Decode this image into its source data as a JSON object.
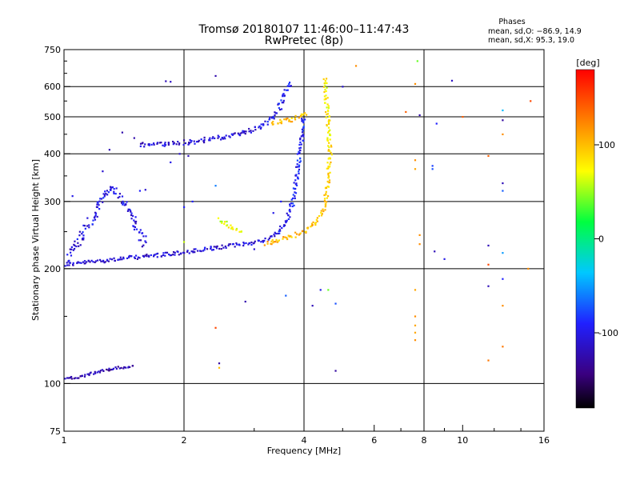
{
  "chart_data": {
    "type": "scatter",
    "title": "Tromsø 20180107 11:46:00–11:47:43",
    "subtitle": "RwPretec (8p)",
    "xlabel": "Frequency [MHz]",
    "ylabel": "Stationary phase Virtual Height [km]",
    "x_scale": "log",
    "y_scale": "log",
    "xlim": [
      1,
      16
    ],
    "ylim": [
      75,
      750
    ],
    "x_ticks": [
      1,
      2,
      4,
      6,
      8,
      10,
      16
    ],
    "y_ticks": [
      75,
      100,
      200,
      300,
      400,
      500,
      600,
      750
    ],
    "grid": true,
    "phase_info": {
      "heading": "Phases",
      "line_o": "mean, sd,O: −86.9, 14.9",
      "line_x": "mean, sd,X:  95.3, 19.0"
    },
    "colorbar": {
      "label": "[deg]",
      "range": [
        -180,
        180
      ],
      "ticks": [
        100,
        0,
        -100
      ],
      "colors": [
        "#000000",
        "#3a0080",
        "#2020ff",
        "#00c8ff",
        "#00ff40",
        "#ffff00",
        "#ff8000",
        "#ff0000"
      ]
    },
    "series": [
      {
        "trace": [
          [
            1.0,
            205,
            -110
          ],
          [
            1.15,
            208,
            -110
          ],
          [
            1.3,
            211,
            -112
          ],
          [
            1.5,
            214,
            -112
          ],
          [
            1.8,
            218,
            -110
          ],
          [
            2.1,
            222,
            -110
          ],
          [
            2.5,
            228,
            -108
          ],
          [
            2.8,
            232,
            -108
          ],
          [
            3.1,
            236,
            -105
          ],
          [
            3.4,
            245,
            -100
          ],
          [
            3.6,
            265,
            -100
          ],
          [
            3.75,
            300,
            -95
          ],
          [
            3.85,
            360,
            -95
          ],
          [
            3.95,
            440,
            -90
          ],
          [
            4.0,
            500,
            -90
          ]
        ],
        "spread": 5
      },
      {
        "trace": [
          [
            1.55,
            422,
            -112
          ],
          [
            1.8,
            425,
            -110
          ],
          [
            2.1,
            430,
            -110
          ],
          [
            2.5,
            442,
            -108
          ],
          [
            2.9,
            458,
            -105
          ],
          [
            3.2,
            480,
            -102
          ],
          [
            3.45,
            520,
            -100
          ],
          [
            3.6,
            580,
            -95
          ],
          [
            3.7,
            620,
            -95
          ]
        ],
        "spread": 6
      },
      {
        "trace": [
          [
            3.2,
            232,
            110
          ],
          [
            3.6,
            240,
            105
          ],
          [
            4.0,
            250,
            100
          ],
          [
            4.3,
            265,
            100
          ],
          [
            4.5,
            290,
            95
          ],
          [
            4.6,
            340,
            90
          ],
          [
            4.65,
            400,
            85
          ],
          [
            4.6,
            470,
            80
          ],
          [
            4.55,
            560,
            80
          ],
          [
            4.5,
            640,
            78
          ]
        ],
        "spread": 5
      },
      {
        "trace": [
          [
            3.3,
            480,
            110
          ],
          [
            3.7,
            490,
            100
          ],
          [
            4.1,
            510,
            100
          ]
        ],
        "spread": 6
      },
      {
        "trace": [
          [
            2.45,
            270,
            60
          ],
          [
            2.6,
            258,
            70
          ],
          [
            2.8,
            248,
            65
          ]
        ],
        "spread": 5
      },
      {
        "trace": [
          [
            1.0,
            210,
            -110
          ],
          [
            1.1,
            240,
            -105
          ],
          [
            1.2,
            280,
            -100
          ],
          [
            1.3,
            330,
            -100
          ],
          [
            1.45,
            290,
            -105
          ],
          [
            1.6,
            230,
            -110
          ]
        ],
        "spread": 9
      },
      {
        "trace": [
          [
            1.0,
            103,
            -120
          ],
          [
            1.1,
            104,
            -120
          ],
          [
            1.2,
            107,
            -125
          ],
          [
            1.35,
            110,
            -125
          ],
          [
            1.5,
            111,
            -125
          ]
        ],
        "spread": 3
      }
    ],
    "scatter_points": [
      [
        1.8,
        620,
        -120
      ],
      [
        1.85,
        618,
        -115
      ],
      [
        2.4,
        640,
        -125
      ],
      [
        5.0,
        600,
        -110
      ],
      [
        5.4,
        680,
        120
      ],
      [
        7.6,
        610,
        120
      ],
      [
        7.7,
        700,
        40
      ],
      [
        7.2,
        515,
        140
      ],
      [
        7.8,
        505,
        -125
      ],
      [
        8.6,
        480,
        -90
      ],
      [
        9.4,
        622,
        -115
      ],
      [
        10.0,
        500,
        140
      ],
      [
        12.6,
        520,
        -40
      ],
      [
        12.6,
        490,
        -130
      ],
      [
        12.6,
        450,
        120
      ],
      [
        14.8,
        550,
        150
      ],
      [
        11.6,
        395,
        140
      ],
      [
        12.6,
        335,
        -120
      ],
      [
        12.6,
        320,
        -70
      ],
      [
        7.6,
        385,
        120
      ],
      [
        7.6,
        365,
        110
      ],
      [
        8.4,
        372,
        -80
      ],
      [
        8.4,
        365,
        -75
      ],
      [
        7.8,
        245,
        120
      ],
      [
        7.8,
        232,
        120
      ],
      [
        11.6,
        230,
        -120
      ],
      [
        11.6,
        205,
        150
      ],
      [
        12.6,
        220,
        -50
      ],
      [
        14.6,
        200,
        120
      ],
      [
        8.5,
        222,
        -120
      ],
      [
        9.0,
        212,
        -100
      ],
      [
        11.6,
        180,
        -120
      ],
      [
        12.6,
        188,
        -90
      ],
      [
        12.6,
        160,
        120
      ],
      [
        7.6,
        176,
        110
      ],
      [
        7.6,
        150,
        120
      ],
      [
        7.6,
        142,
        110
      ],
      [
        7.6,
        136,
        110
      ],
      [
        7.6,
        130,
        120
      ],
      [
        11.6,
        115,
        130
      ],
      [
        12.6,
        125,
        130
      ],
      [
        4.4,
        176,
        -100
      ],
      [
        4.6,
        176,
        40
      ],
      [
        3.6,
        170,
        -70
      ],
      [
        4.2,
        160,
        -120
      ],
      [
        4.8,
        162,
        -75
      ],
      [
        2.85,
        164,
        -125
      ],
      [
        2.4,
        140,
        150
      ],
      [
        2.45,
        110,
        100
      ],
      [
        2.45,
        113,
        -130
      ],
      [
        4.8,
        108,
        -130
      ],
      [
        2.4,
        330,
        -60
      ],
      [
        2.0,
        235,
        60
      ],
      [
        2.1,
        300,
        -90
      ],
      [
        2.0,
        290,
        -90
      ],
      [
        1.55,
        320,
        -90
      ],
      [
        1.6,
        322,
        -110
      ],
      [
        1.4,
        455,
        -125
      ],
      [
        1.5,
        440,
        -125
      ],
      [
        1.3,
        410,
        -120
      ],
      [
        1.25,
        360,
        -110
      ],
      [
        1.05,
        310,
        -100
      ],
      [
        1.85,
        380,
        -100
      ],
      [
        1.95,
        400,
        -110
      ],
      [
        2.05,
        395,
        -120
      ],
      [
        3.0,
        225,
        -110
      ],
      [
        3.35,
        280,
        -100
      ],
      [
        3.5,
        300,
        -95
      ],
      [
        4.7,
        75,
        -120
      ],
      [
        4.55,
        74,
        -90
      ]
    ]
  }
}
